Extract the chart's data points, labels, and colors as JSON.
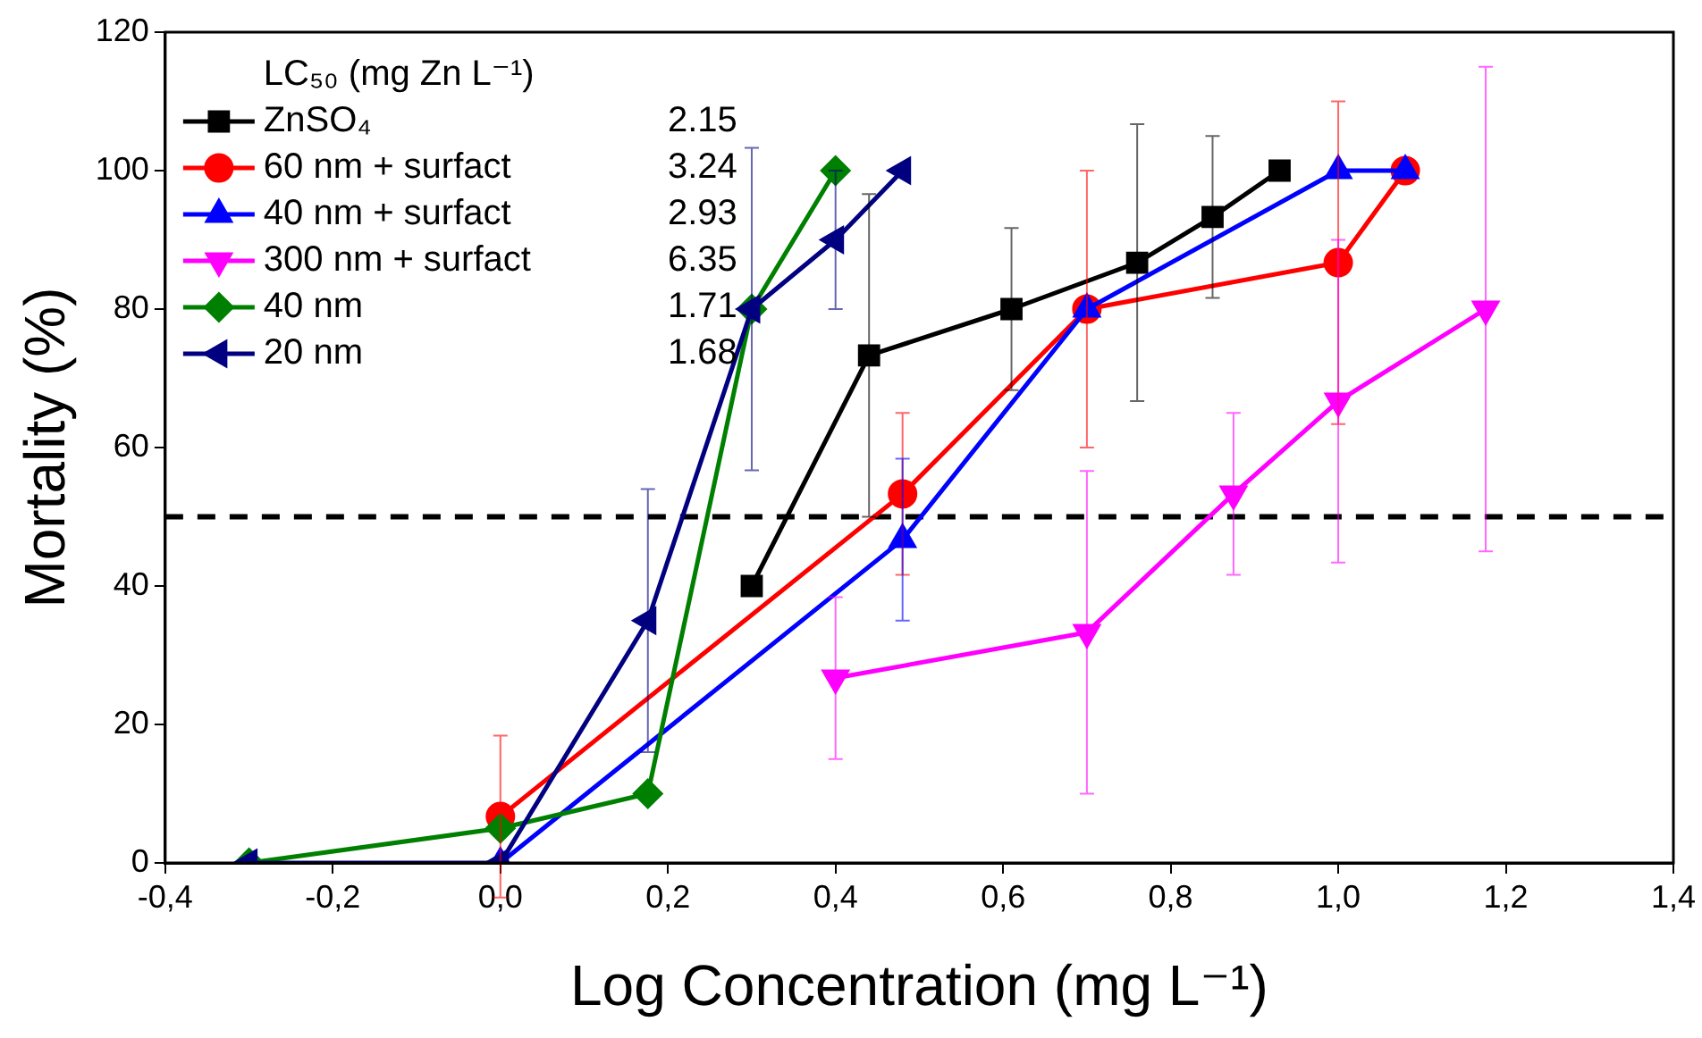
{
  "chart_data": {
    "type": "line",
    "xlabel": "Log Concentration (mg L⁻¹)",
    "ylabel": "Mortality (%)",
    "legend_title": "LC₅₀ (mg Zn L⁻¹)",
    "xlim": [
      -0.4,
      1.4
    ],
    "xticks": [
      {
        "value": -0.4,
        "label": "-0,4"
      },
      {
        "value": -0.2,
        "label": "-0,2"
      },
      {
        "value": 0,
        "label": "0,0"
      },
      {
        "value": 0.2,
        "label": "0,2"
      },
      {
        "value": 0.4,
        "label": "0,4"
      },
      {
        "value": 0.6,
        "label": "0,6"
      },
      {
        "value": 0.8,
        "label": "0,8"
      },
      {
        "value": 1.0,
        "label": "1,0"
      },
      {
        "value": 1.2,
        "label": "1,2"
      },
      {
        "value": 1.4,
        "label": "1,4"
      }
    ],
    "ylim": [
      0,
      120
    ],
    "yticks": [
      0,
      20,
      40,
      60,
      80,
      100,
      120
    ],
    "grid": false,
    "legend": "top left",
    "line_style": "solid",
    "ref_lines": [
      {
        "axis": "y",
        "value": 50,
        "color": "#000000",
        "line_style": "dashed"
      }
    ],
    "annotations": [
      "2.15",
      "3.24",
      "2.93",
      "6.35",
      "1.71",
      "1.68"
    ],
    "series": [
      {
        "name": "ZnSO₄",
        "color": "#000000",
        "marker": "square",
        "x": [
          0.3,
          0.44,
          0.61,
          0.76,
          0.85,
          0.93
        ],
        "values": [
          40,
          73.3,
          80,
          86.7,
          93.3,
          100
        ],
        "errors": [
          null,
          23.3,
          11.7,
          20,
          11.7,
          null
        ]
      },
      {
        "name": "60 nm + surfact",
        "color": "#ff0000",
        "marker": "circle",
        "x": [
          0,
          0.48,
          0.7,
          1.0,
          1.08
        ],
        "values": [
          6.7,
          53.3,
          80,
          86.7,
          100
        ],
        "errors": [
          11.7,
          11.7,
          20,
          23.3,
          null
        ]
      },
      {
        "name": "40 nm + surfact",
        "color": "#0000ff",
        "marker": "triangle",
        "x": [
          0,
          0.48,
          0.7,
          1.0,
          1.08
        ],
        "values": [
          0,
          46.7,
          80,
          100,
          100
        ],
        "errors": [
          null,
          11.7,
          null,
          null,
          null
        ]
      },
      {
        "name": "300 nm + surfact",
        "color": "#ff00ff",
        "marker": "triangle-down",
        "x": [
          0.4,
          0.7,
          0.875,
          1.0,
          1.176
        ],
        "values": [
          26.7,
          33.3,
          53.3,
          66.7,
          80
        ],
        "errors": [
          11.7,
          23.3,
          11.7,
          23.3,
          35
        ]
      },
      {
        "name": "40 nm",
        "color": "#008000",
        "marker": "diamond",
        "x": [
          -0.3,
          0,
          0.176,
          0.3,
          0.4
        ],
        "values": [
          0,
          5,
          10,
          80,
          100
        ]
      },
      {
        "name": "20 nm",
        "color": "#000080",
        "marker": "triangle-left",
        "x": [
          -0.3,
          0,
          0.176,
          0.3,
          0.4,
          0.48
        ],
        "values": [
          0,
          0,
          35,
          80,
          90,
          100
        ],
        "errors": [
          null,
          null,
          19,
          23.3,
          10,
          null
        ]
      }
    ]
  }
}
